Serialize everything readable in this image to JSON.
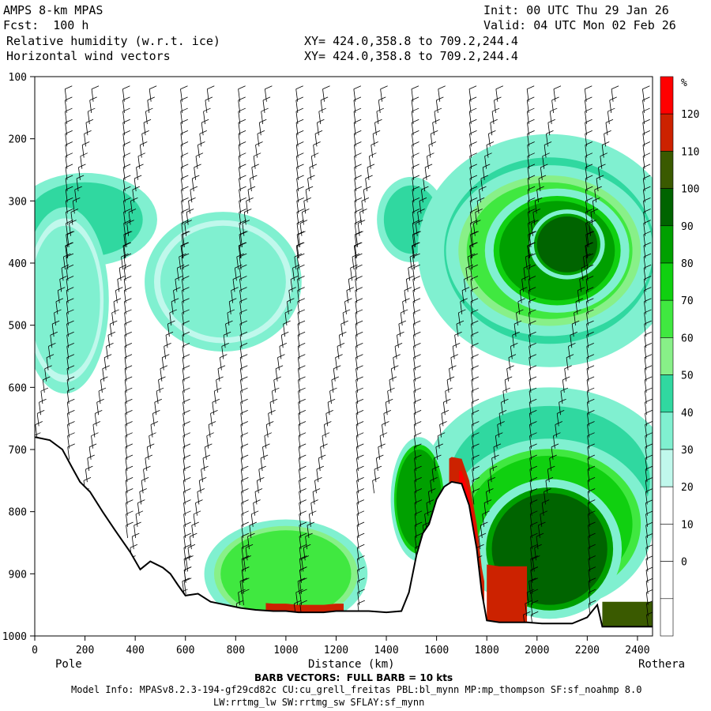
{
  "header": {
    "model": "AMPS 8-km MPAS",
    "fcst": "Fcst:  100 h",
    "field": "Relative humidity (w.r.t. ice)",
    "vectors": "Horizontal wind vectors",
    "init": "Init: 00 UTC Thu 29 Jan 26",
    "valid": "Valid: 04 UTC Mon 02 Feb 26",
    "xy1": "XY= 424.0,358.8 to 709.2,244.4",
    "xy2": "XY= 424.0,358.8 to 709.2,244.4"
  },
  "footer": {
    "barb": "BARB VECTORS:  FULL BARB = 10 kts",
    "model_info": "Model Info: MPASv8.2.3-194-gf29cd82c CU:cu_grell_freitas PBL:bl_mynn MP:mp_thompson SF:sf_noahmp 8.0",
    "model_info2": "LW:rrtmg_lw SW:rrtmg_sw SFLAY:sf_mynn"
  },
  "chart_data": {
    "type": "heatmap",
    "xlabel": "Distance (km)",
    "x_start_label": "Pole",
    "x_end_label": "Rothera",
    "xlim": [
      0,
      2460
    ],
    "ylim": [
      1000,
      100
    ],
    "x_ticks": [
      "0",
      "200",
      "400",
      "600",
      "800",
      "1000",
      "1200",
      "1400",
      "1600",
      "1800",
      "2000",
      "2200",
      "2400"
    ],
    "y_ticks": [
      "100",
      "200",
      "300",
      "400",
      "500",
      "600",
      "700",
      "800",
      "900",
      "1000"
    ],
    "colorbar": {
      "unit": "%",
      "labels": [
        "120",
        "110",
        "100",
        "90",
        "80",
        "70",
        "60",
        "50",
        "40",
        "30",
        "20",
        "10",
        "0"
      ],
      "colors": [
        "#ff0000",
        "#cc2200",
        "#3a5a00",
        "#006400",
        "#00a000",
        "#10d010",
        "#40e840",
        "#88f088",
        "#30d8a0",
        "#80f0d0",
        "#c0f8ec",
        "#ffffff",
        "#ffffff",
        "#ffffff",
        "#ffffff"
      ]
    },
    "terrain": [
      [
        0,
        680
      ],
      [
        60,
        685
      ],
      [
        110,
        700
      ],
      [
        150,
        730
      ],
      [
        180,
        752
      ],
      [
        220,
        768
      ],
      [
        270,
        800
      ],
      [
        320,
        830
      ],
      [
        380,
        865
      ],
      [
        420,
        893
      ],
      [
        460,
        880
      ],
      [
        510,
        890
      ],
      [
        540,
        900
      ],
      [
        570,
        918
      ],
      [
        600,
        935
      ],
      [
        650,
        932
      ],
      [
        700,
        945
      ],
      [
        760,
        950
      ],
      [
        820,
        955
      ],
      [
        880,
        958
      ],
      [
        950,
        960
      ],
      [
        1000,
        960
      ],
      [
        1050,
        962
      ],
      [
        1100,
        962
      ],
      [
        1150,
        962
      ],
      [
        1200,
        960
      ],
      [
        1260,
        960
      ],
      [
        1330,
        960
      ],
      [
        1400,
        962
      ],
      [
        1460,
        960
      ],
      [
        1490,
        930
      ],
      [
        1520,
        870
      ],
      [
        1545,
        835
      ],
      [
        1570,
        820
      ],
      [
        1600,
        780
      ],
      [
        1630,
        760
      ],
      [
        1660,
        752
      ],
      [
        1700,
        755
      ],
      [
        1730,
        790
      ],
      [
        1760,
        860
      ],
      [
        1780,
        930
      ],
      [
        1800,
        975
      ],
      [
        1850,
        978
      ],
      [
        1900,
        978
      ],
      [
        1960,
        978
      ],
      [
        2020,
        980
      ],
      [
        2080,
        980
      ],
      [
        2140,
        980
      ],
      [
        2200,
        970
      ],
      [
        2240,
        950
      ],
      [
        2260,
        985
      ],
      [
        2320,
        985
      ],
      [
        2380,
        985
      ],
      [
        2460,
        985
      ]
    ],
    "rh_blobs": [
      {
        "x": 200,
        "p": 330,
        "rx": 230,
        "rp": 60,
        "rh": 40
      },
      {
        "x": 120,
        "p": 460,
        "rx": 140,
        "rp": 120,
        "rh": 30
      },
      {
        "x": 750,
        "p": 430,
        "rx": 250,
        "rp": 90,
        "rh": 30
      },
      {
        "x": 1500,
        "p": 330,
        "rx": 110,
        "rp": 55,
        "rh": 40
      },
      {
        "x": 2050,
        "p": 380,
        "rx": 420,
        "rp": 150,
        "rh": 40
      },
      {
        "x": 2050,
        "p": 380,
        "rx": 330,
        "rp": 110,
        "rh": 60
      },
      {
        "x": 2080,
        "p": 380,
        "rx": 230,
        "rp": 80,
        "rh": 80
      },
      {
        "x": 2120,
        "p": 370,
        "rx": 120,
        "rp": 45,
        "rh": 90
      },
      {
        "x": 2050,
        "p": 750,
        "rx": 400,
        "rp": 120,
        "rh": 40
      },
      {
        "x": 2050,
        "p": 820,
        "rx": 330,
        "rp": 110,
        "rh": 70
      },
      {
        "x": 2050,
        "p": 860,
        "rx": 230,
        "rp": 90,
        "rh": 90
      },
      {
        "x": 1000,
        "p": 900,
        "rx": 260,
        "rp": 70,
        "rh": 60
      },
      {
        "x": 1530,
        "p": 780,
        "rx": 90,
        "rp": 80,
        "rh": 80
      }
    ]
  }
}
